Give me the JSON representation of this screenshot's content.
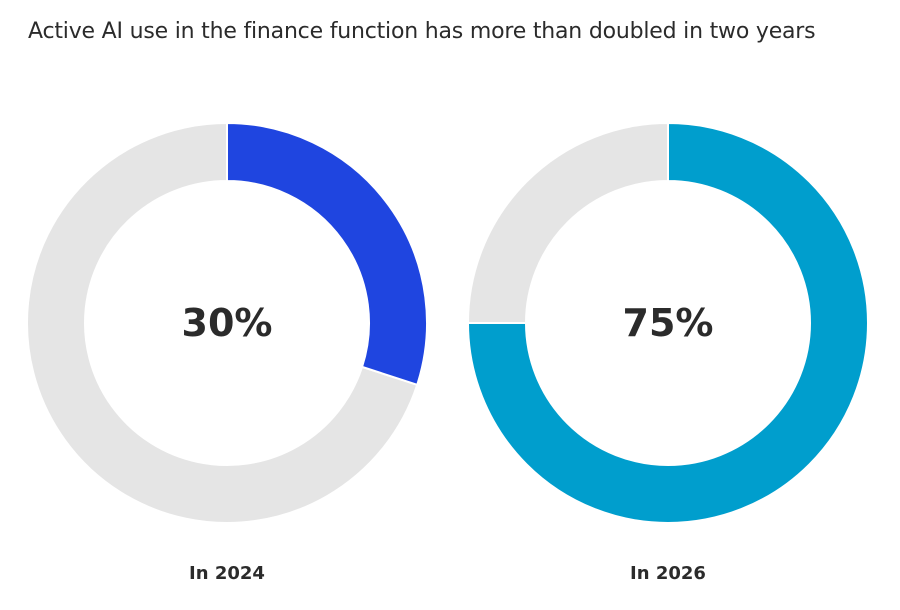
{
  "title": "Active AI use in the finance function has more than doubled in two years",
  "chart_data": [
    {
      "type": "pie",
      "variant": "donut",
      "category": "In 2024",
      "value": 30,
      "value_label": "30%",
      "max": 100,
      "fill_color": "#1f45e0",
      "track_color": "#e5e5e5"
    },
    {
      "type": "pie",
      "variant": "donut",
      "category": "In 2026",
      "value": 75,
      "value_label": "75%",
      "max": 100,
      "fill_color": "#009ecd",
      "track_color": "#e5e5e5"
    }
  ]
}
